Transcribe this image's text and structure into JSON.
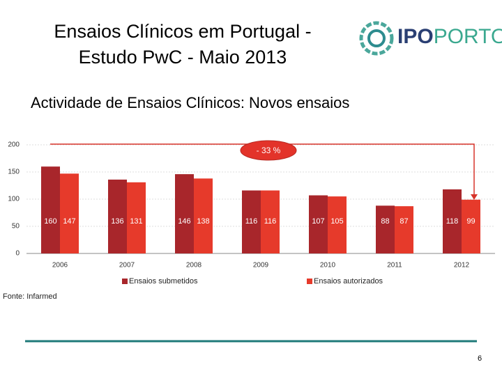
{
  "title_lines": [
    "Ensaios Clínicos em Portugal -",
    "Estudo PwC - Maio 2013"
  ],
  "logo": {
    "part1": "IPO",
    "part2": "PORTO"
  },
  "page_number": "6",
  "chart_data": {
    "type": "bar",
    "title": "Actividade de Ensaios Clínicos: Novos ensaios",
    "categories": [
      "2006",
      "2007",
      "2008",
      "2009",
      "2010",
      "2011",
      "2012"
    ],
    "series": [
      {
        "name": "Ensaios submetidos",
        "color": "#a8262b",
        "values": [
          160,
          136,
          146,
          116,
          107,
          88,
          118
        ]
      },
      {
        "name": "Ensaios autorizados",
        "color": "#e63a2b",
        "values": [
          147,
          131,
          138,
          116,
          105,
          87,
          99
        ]
      }
    ],
    "ylim": [
      0,
      200
    ],
    "yticks": [
      0,
      50,
      100,
      150,
      200
    ],
    "grid": true,
    "annotation": "- 33 %",
    "source": "Fonte: Infarmed"
  }
}
